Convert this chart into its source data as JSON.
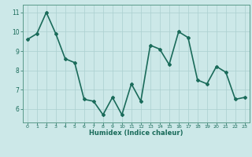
{
  "x": [
    0,
    1,
    2,
    3,
    4,
    5,
    6,
    7,
    8,
    9,
    10,
    11,
    12,
    13,
    14,
    15,
    16,
    17,
    18,
    19,
    20,
    21,
    22,
    23
  ],
  "y": [
    9.6,
    9.9,
    11.0,
    9.9,
    8.6,
    8.4,
    6.5,
    6.4,
    5.7,
    6.6,
    5.7,
    7.3,
    6.4,
    9.3,
    9.1,
    8.3,
    10.0,
    9.7,
    7.5,
    7.3,
    8.2,
    7.9,
    6.5,
    6.6
  ],
  "line_color": "#1a6b5a",
  "marker": "D",
  "marker_size": 2,
  "xlabel": "Humidex (Indice chaleur)",
  "ylim": [
    5.3,
    11.4
  ],
  "xlim": [
    -0.5,
    23.5
  ],
  "yticks": [
    6,
    7,
    8,
    9,
    10,
    11
  ],
  "xticks": [
    0,
    1,
    2,
    3,
    4,
    5,
    6,
    7,
    8,
    9,
    10,
    11,
    12,
    13,
    14,
    15,
    16,
    17,
    18,
    19,
    20,
    21,
    22,
    23
  ],
  "bg_color": "#cce8e8",
  "grid_color": "#aacfcf",
  "tick_color": "#1a6b5a",
  "label_color": "#1a6b5a",
  "line_width": 1.2,
  "spine_color": "#5a9a8a"
}
